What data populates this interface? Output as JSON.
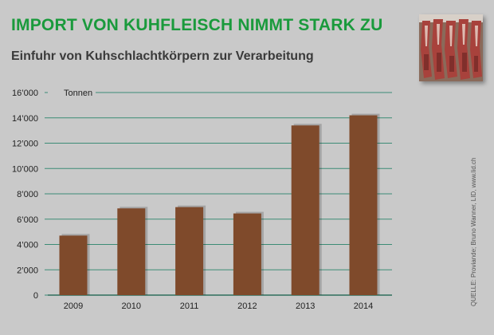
{
  "title": "IMPORT VON KUHFLEISCH NIMMT STARK ZU",
  "subtitle": "Einfuhr von Kuhschlachtkörpern zur Verarbeitung",
  "source": "QUELLE: Proviande; Bruno Wanner, LID, www.lid.ch",
  "photo_alt": "hanging-beef-carcasses-photo",
  "colors": {
    "title": "#1a9a3c",
    "bar": "#7f4a2b",
    "grid": "#3c8c76",
    "background": "#c9c9c9"
  },
  "chart_data": {
    "type": "bar",
    "categories": [
      "2009",
      "2010",
      "2011",
      "2012",
      "2013",
      "2014"
    ],
    "values": [
      4700,
      6850,
      6950,
      6450,
      13400,
      14200
    ],
    "unit_label": "Tonnen",
    "ylim": [
      0,
      16000
    ],
    "yticks": [
      0,
      2000,
      4000,
      6000,
      8000,
      10000,
      12000,
      14000,
      16000
    ],
    "ytick_labels": [
      "0",
      "2’000",
      "4’000",
      "6’000",
      "8’000",
      "10’000",
      "12’000",
      "14’000",
      "16’000"
    ],
    "grid": true
  }
}
